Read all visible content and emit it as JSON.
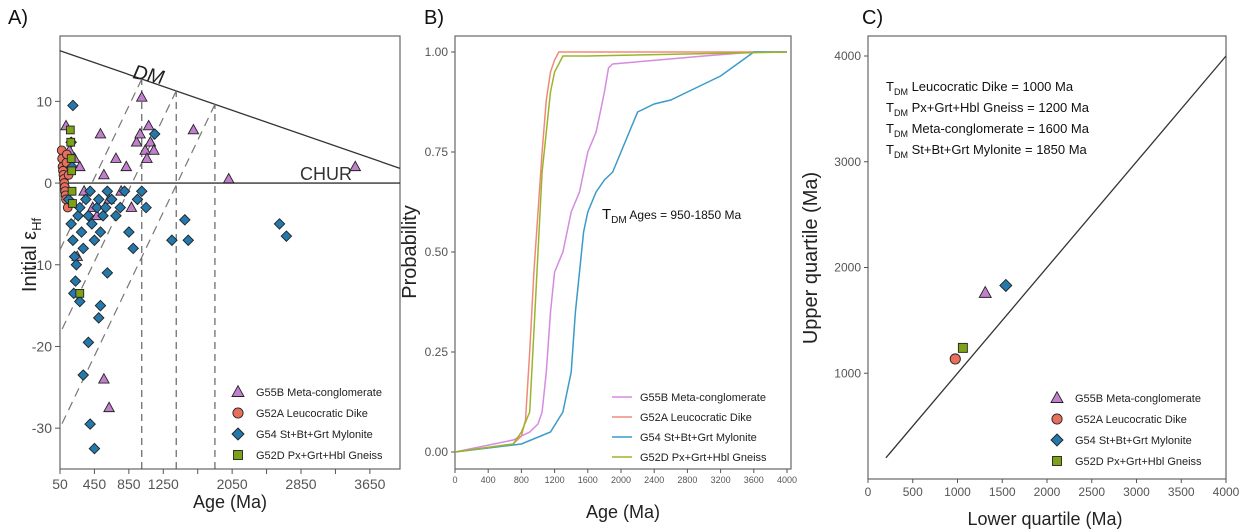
{
  "chart_data": [
    {
      "panel_label": "A)",
      "type": "scatter",
      "xlabel": "Age (Ma)",
      "ylabel_main": "Initial ε",
      "ylabel_sub": "Hf",
      "xlim": [
        50,
        4000
      ],
      "ylim": [
        -35,
        18
      ],
      "xticks": [
        50,
        450,
        850,
        1250,
        1650,
        2050,
        2450,
        2850,
        3250,
        3650
      ],
      "xtick_labels": [
        "50",
        "450",
        "850",
        "1250",
        "",
        "2050",
        "",
        "2850",
        "",
        "3650"
      ],
      "yticks": [
        10,
        0,
        -10,
        -20,
        -30
      ],
      "ytick_labels": [
        "10",
        "0",
        "-10",
        "-20",
        "-30"
      ],
      "reference_lines": [
        {
          "label": "DM",
          "x": [
            50,
            4000
          ],
          "y": [
            16.2,
            1.8
          ]
        },
        {
          "label": "CHUR",
          "x": [
            50,
            4000
          ],
          "y": [
            0,
            0
          ]
        }
      ],
      "vertical_lines_x": [
        1000,
        1400,
        1850
      ],
      "series": [
        {
          "name": "G55B Meta-conglomerate",
          "color": "#c17fcd",
          "marker": "triangle",
          "x": [
            120,
            160,
            220,
            280,
            330,
            430,
            480,
            520,
            560,
            620,
            700,
            760,
            820,
            880,
            940,
            980,
            1000,
            1040,
            1060,
            1080,
            1100,
            1140,
            1600,
            2010,
            3480,
            150,
            250,
            560,
            620
          ],
          "y": [
            7,
            4,
            3,
            2,
            -1,
            -3,
            -4,
            6,
            1,
            -2,
            3,
            -1,
            2,
            -3,
            5,
            6,
            10.5,
            4,
            3,
            7,
            5,
            4,
            6.5,
            0.5,
            2,
            -1,
            -9,
            -24,
            -27.5
          ]
        },
        {
          "name": "G52A Leucocratic Dike",
          "color": "#e96f5d",
          "marker": "circle",
          "x": [
            70,
            75,
            80,
            85,
            90,
            95,
            100,
            105,
            110,
            115,
            120,
            125,
            130,
            140,
            150
          ],
          "y": [
            4,
            3,
            2,
            1.5,
            1,
            0.5,
            0,
            -0.5,
            -1,
            -1.5,
            -2,
            2.5,
            3.5,
            -3,
            1
          ]
        },
        {
          "name": "G54 St+Bt+Grt Mylonite",
          "color": "#2379ab",
          "marker": "diamond",
          "x": [
            150,
            180,
            200,
            220,
            240,
            260,
            280,
            300,
            320,
            350,
            380,
            400,
            420,
            450,
            480,
            500,
            520,
            550,
            580,
            600,
            650,
            700,
            750,
            800,
            850,
            900,
            950,
            1000,
            1050,
            1150,
            1350,
            1500,
            1540,
            2600,
            2680,
            200,
            230,
            280,
            320,
            380,
            400,
            450,
            500,
            520,
            600,
            180,
            190,
            210
          ],
          "y": [
            -2,
            -5,
            -7,
            -9,
            -10,
            -4,
            -3,
            -6,
            -8,
            -2,
            -4,
            -1,
            -5,
            -7,
            -3,
            -2,
            -6,
            -4,
            -3,
            -1,
            -2,
            -4,
            -3,
            -1,
            -6,
            -8,
            -2,
            -1,
            -3,
            6,
            -7,
            -4.5,
            -7,
            -5,
            -6.5,
            9.5,
            -12,
            -14.5,
            -23.5,
            -19.5,
            -29.5,
            -32.5,
            -16.5,
            -15,
            -11,
            5,
            2,
            -13.5
          ]
        },
        {
          "name": "G52D Px+Grt+Hbl Gneiss",
          "color": "#7ea217",
          "marker": "square",
          "x": [
            170,
            175,
            180,
            185,
            190,
            195,
            280
          ],
          "y": [
            6.5,
            5,
            3,
            1.5,
            -1,
            -2.5,
            -13.5
          ]
        }
      ]
    },
    {
      "panel_label": "B)",
      "type": "line",
      "xlabel": "Age (Ma)",
      "ylabel": "Probability",
      "xlim": [
        0,
        4000
      ],
      "ylim": [
        0,
        1.05
      ],
      "xticks": [
        0,
        400,
        800,
        1200,
        1600,
        2000,
        2400,
        2800,
        3200,
        3600,
        4000
      ],
      "yticks": [
        0,
        0.25,
        0.5,
        0.75,
        1.0
      ],
      "ytick_labels": [
        "0.00",
        "0.25",
        "0.50",
        "0.75",
        "1.00"
      ],
      "annotation_main": "T",
      "annotation_sub": "DM",
      "annotation_rest": " Ages = 950-1850 Ma",
      "series": [
        {
          "name": "G55B Meta-conglomerate",
          "color": "#d58be0",
          "x": [
            0,
            700,
            900,
            1000,
            1050,
            1100,
            1150,
            1200,
            1300,
            1400,
            1500,
            1600,
            1700,
            1750,
            1800,
            1850,
            1900,
            3000,
            3600,
            4000
          ],
          "y": [
            0,
            0.03,
            0.05,
            0.07,
            0.1,
            0.2,
            0.35,
            0.45,
            0.5,
            0.6,
            0.65,
            0.75,
            0.8,
            0.85,
            0.9,
            0.96,
            0.97,
            0.99,
            1.0,
            1.0
          ]
        },
        {
          "name": "G52A Leucocratic Dike",
          "color": "#f08a78",
          "x": [
            0,
            700,
            800,
            850,
            900,
            950,
            1000,
            1050,
            1100,
            1150,
            1200,
            1250,
            4000
          ],
          "y": [
            0,
            0.02,
            0.04,
            0.08,
            0.25,
            0.45,
            0.6,
            0.75,
            0.88,
            0.95,
            0.98,
            1.0,
            1.0
          ]
        },
        {
          "name": "G54 St+Bt+Grt Mylonite",
          "color": "#3b9bc8",
          "x": [
            0,
            800,
            1150,
            1300,
            1400,
            1450,
            1500,
            1550,
            1600,
            1700,
            1800,
            1900,
            2000,
            2100,
            2200,
            2400,
            2600,
            2800,
            3000,
            3200,
            3400,
            3600,
            4000
          ],
          "y": [
            0,
            0.02,
            0.05,
            0.1,
            0.2,
            0.35,
            0.45,
            0.55,
            0.6,
            0.65,
            0.68,
            0.7,
            0.75,
            0.8,
            0.85,
            0.87,
            0.88,
            0.9,
            0.92,
            0.94,
            0.97,
            1.0,
            1.0
          ]
        },
        {
          "name": "G52D Px+Grt+Hbl Gneiss",
          "color": "#9ab52a",
          "x": [
            0,
            700,
            800,
            900,
            950,
            1000,
            1050,
            1100,
            1150,
            1200,
            1250,
            1300,
            1600,
            4000
          ],
          "y": [
            0,
            0.02,
            0.05,
            0.1,
            0.3,
            0.5,
            0.7,
            0.8,
            0.9,
            0.95,
            0.97,
            0.99,
            0.99,
            1.0
          ]
        }
      ]
    },
    {
      "panel_label": "C)",
      "type": "scatter",
      "xlabel": "Lower quartile (Ma)",
      "ylabel": "Upper quartile (Ma)",
      "xlim": [
        0,
        4000
      ],
      "ylim": [
        0,
        4000
      ],
      "xticks": [
        0,
        500,
        1000,
        1500,
        2000,
        2500,
        3000,
        3500,
        4000
      ],
      "yticks": [
        1000,
        2000,
        3000,
        4000
      ],
      "one_to_one_line": {
        "x": [
          200,
          4000
        ],
        "y": [
          200,
          4000
        ]
      },
      "annotations": [
        {
          "main": "T",
          "sub": "DM",
          "rest": " Leucocratic Dike = 1000 Ma"
        },
        {
          "main": "T",
          "sub": "DM",
          "rest": " Px+Grt+Hbl Gneiss = 1200 Ma"
        },
        {
          "main": "T",
          "sub": "DM",
          "rest": " Meta-conglomerate = 1600 Ma"
        },
        {
          "main": "T",
          "sub": "DM",
          "rest": " St+Bt+Grt Mylonite = 1850 Ma"
        }
      ],
      "series": [
        {
          "name": "G55B Meta-conglomerate",
          "color": "#c17fcd",
          "marker": "triangle",
          "x": [
            1310
          ],
          "y": [
            1760
          ]
        },
        {
          "name": "G52A Leucocratic Dike",
          "color": "#e96f5d",
          "marker": "circle",
          "x": [
            975
          ],
          "y": [
            1135
          ]
        },
        {
          "name": "G54 St+Bt+Grt Mylonite",
          "color": "#2379ab",
          "marker": "diamond",
          "x": [
            1540
          ],
          "y": [
            1830
          ]
        },
        {
          "name": "G52D Px+Grt+Hbl Gneiss",
          "color": "#7ea217",
          "marker": "square",
          "x": [
            1060
          ],
          "y": [
            1240
          ]
        }
      ]
    }
  ],
  "legend_labels": {
    "g55b": "G55B Meta-conglomerate",
    "g52a": "G52A Leucocratic Dike",
    "g54": "G54 St+Bt+Grt Mylonite",
    "g52d": "G52D Px+Grt+Hbl Gneiss"
  }
}
